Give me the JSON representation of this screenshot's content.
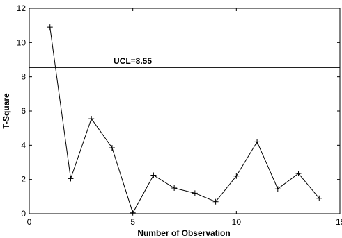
{
  "chart_data": {
    "type": "line",
    "title": "",
    "xlabel": "Number of Observation",
    "ylabel": "T-Square",
    "xlim": [
      0,
      15
    ],
    "ylim": [
      0,
      12
    ],
    "x_ticks": [
      "0",
      "5",
      "10",
      "15"
    ],
    "x_tick_values": [
      0,
      5,
      10,
      15
    ],
    "y_ticks": [
      "0",
      "2",
      "4",
      "6",
      "8",
      "10",
      "12"
    ],
    "y_tick_values": [
      0,
      2,
      4,
      6,
      8,
      10,
      12
    ],
    "grid": false,
    "series": [
      {
        "marker": "+",
        "color": "#000000",
        "x": [
          1,
          2,
          3,
          4,
          5,
          6,
          7,
          8,
          9,
          10,
          11,
          12,
          13,
          14
        ],
        "y": [
          10.9,
          2.05,
          5.55,
          3.85,
          0.05,
          2.25,
          1.5,
          1.2,
          0.7,
          2.2,
          4.2,
          1.45,
          2.35,
          0.9
        ]
      }
    ],
    "control_limit": {
      "value": 8.55,
      "label": "UCL=8.55"
    }
  }
}
